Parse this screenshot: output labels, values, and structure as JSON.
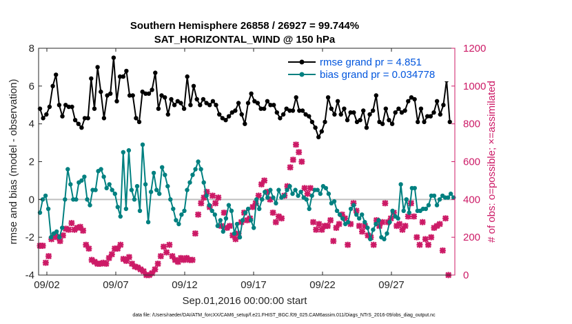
{
  "colors": {
    "rmse": "#000000",
    "bias": "#008080",
    "obs": "#cc1a66",
    "zero": "#bfbfbf",
    "legend_text": "#0055dd",
    "axis": "#262626"
  },
  "chart_data": {
    "type": "line",
    "title_line1": "Southern Hemisphere 26858 / 26927 = 99.744%",
    "title_line2": "SAT_HORIZONTAL_WIND @ 150 hPa",
    "xlabel": "Sep.01,2016 00:00:00 start",
    "ylabel_left": "rmse and bias (model - observation)",
    "ylabel_right": "# of obs: o=possible; ×=assimilated",
    "footer": "data file: /Users/raeder/DAI/ATM_forcXX/CAM6_setup/f.e21.FHIST_BGC.f09_025.CAM6assim.011/Diags_NTrS_2016-09/obs_diag_output.nc",
    "x_range_days": [
      0.4,
      30.6
    ],
    "ylim_left": [
      -4,
      8
    ],
    "ylim_right": [
      0,
      1200
    ],
    "x_ticks": [
      {
        "day": 1,
        "label": "09/02"
      },
      {
        "day": 6,
        "label": "09/07"
      },
      {
        "day": 11,
        "label": "09/12"
      },
      {
        "day": 16,
        "label": "09/17"
      },
      {
        "day": 21,
        "label": "09/22"
      },
      {
        "day": 26,
        "label": "09/27"
      }
    ],
    "y_ticks_left": [
      -4,
      -2,
      0,
      2,
      4,
      6,
      8
    ],
    "y_ticks_right": [
      0,
      200,
      400,
      600,
      800,
      1000,
      1200
    ],
    "legend": {
      "position": "top-right",
      "entries": [
        "rmse grand pr = 4.851",
        "bias grand pr = 0.034778"
      ]
    },
    "series": [
      {
        "name": "rmse grand pr = 4.851",
        "axis": "left",
        "marker": "circle",
        "values": [
          4.8,
          4.3,
          4.5,
          4.9,
          6.0,
          6.6,
          5.0,
          4.4,
          5.0,
          4.9,
          4.9,
          4.2,
          4.0,
          3.8,
          4.3,
          4.3,
          6.4,
          4.8,
          7.0,
          5.7,
          4.3,
          5.5,
          5.6,
          7.5,
          5.2,
          6.5,
          6.5,
          6.8,
          5.5,
          5.5,
          4.3,
          4.1,
          5.7,
          5.6,
          5.6,
          5.8,
          6.7,
          4.8,
          5.5,
          5.4,
          4.5,
          5.3,
          5.0,
          5.2,
          5.1,
          4.8,
          6.5,
          5.0,
          6.0,
          5.3,
          5.0,
          5.3,
          5.1,
          5.0,
          5.2,
          5.0,
          4.5,
          4.3,
          4.2,
          4.4,
          4.6,
          4.7,
          5.1,
          4.5,
          4.0,
          5.1,
          5.6,
          5.2,
          5.1,
          4.8,
          4.8,
          5.2,
          5.0,
          5.0,
          4.6,
          4.3,
          4.5,
          4.8,
          4.7,
          4.7,
          5.4,
          4.7,
          4.7,
          4.5,
          4.4,
          4.1,
          3.8,
          3.3,
          3.6,
          4.1,
          5.4,
          4.8,
          4.5,
          5.2,
          4.5,
          4.8,
          4.2,
          4.6,
          4.6,
          4.1,
          4.2,
          4.7,
          3.8,
          4.5,
          4.7,
          5.5,
          4.1,
          4.0,
          4.8,
          4.2,
          4.0,
          4.6,
          4.8,
          4.6,
          4.7,
          5.2,
          5.4,
          5.3,
          4.1,
          4.8,
          4.1,
          4.4,
          4.4,
          4.6,
          5.2,
          4.5,
          5.0,
          6.3,
          4.1
        ],
        "x_start_day": 0.5,
        "x_step_day": 0.2323
      },
      {
        "name": "bias grand pr = 0.034778",
        "axis": "left",
        "marker": "circle",
        "values": [
          -0.7,
          0.0,
          0.2,
          -0.5,
          -2.0,
          -1.8,
          -1.7,
          -2.0,
          -1.5,
          0.0,
          1.6,
          0.8,
          0.0,
          0.0,
          0.9,
          1.0,
          1.2,
          0.0,
          -0.3,
          0.5,
          0.5,
          1.5,
          1.6,
          1.2,
          0.6,
          0.8,
          0.5,
          0.3,
          -0.4,
          -0.9,
          2.5,
          -0.5,
          2.6,
          0.5,
          0.0,
          0.7,
          -0.6,
          2.9,
          0.8,
          -1.2,
          0.4,
          1.4,
          0.5,
          0.3,
          1.7,
          1.3,
          0.7,
          0.0,
          -0.5,
          -1.1,
          -1.3,
          -0.8,
          -0.6,
          0.5,
          0.9,
          1.3,
          1.6,
          2.0,
          1.6,
          0.9,
          0.2,
          -0.3,
          -0.6,
          -0.8,
          -1.4,
          -1.1,
          -1.7,
          -1.0,
          -0.3,
          -0.6,
          -1.8,
          -1.3,
          -2.0,
          -1.1,
          -0.7,
          -0.5,
          -1.1,
          -1.5,
          0.0,
          -0.5,
          0.0,
          0.4,
          0.1,
          0.5,
          0.1,
          -0.2,
          0.5,
          0.1,
          0.2,
          0.5,
          0.7,
          0.3,
          0.5,
          0.2,
          0.4,
          0.1,
          0.0,
          -0.5,
          0.2,
          0.5,
          0.5,
          0.3,
          0.7,
          0.6,
          0.3,
          -0.2,
          -0.1,
          -0.6,
          -0.8,
          -1.0,
          -1.3,
          -1.2,
          -0.5,
          -0.3,
          -0.8,
          -1.0,
          -0.8,
          -1.2,
          -1.5,
          -2.1,
          -1.6,
          -1.3,
          -1.1,
          -2.0,
          -2.1,
          -1.8,
          -1.2,
          -0.6,
          -0.9,
          -1.0,
          0.8,
          -0.6,
          0.0,
          -0.7,
          0.6,
          0.6,
          -0.6,
          -0.6,
          -0.5,
          -0.5,
          -0.3,
          0.2,
          0.2,
          -0.3,
          0.0,
          0.2,
          0.1,
          0.1,
          0.3,
          0.1
        ],
        "x_start_day": 0.5,
        "x_step_day": 0.2014
      },
      {
        "name": "assimilated observations",
        "axis": "right",
        "marker": "x",
        "values": [
          155,
          155,
          65,
          100,
          190,
          210,
          200,
          180,
          210,
          245,
          240,
          275,
          240,
          250,
          255,
          235,
          160,
          140,
          80,
          70,
          60,
          60,
          65,
          60,
          90,
          110,
          140,
          140,
          160,
          85,
          75,
          95,
          60,
          45,
          40,
          30,
          20,
          0,
          0,
          10,
          30,
          60,
          100,
          150,
          120,
          160,
          100,
          80,
          70,
          90,
          80,
          90,
          80,
          80,
          220,
          320,
          380,
          410,
          440,
          360,
          420,
          380,
          410,
          260,
          330,
          250,
          260,
          210,
          190,
          220,
          280,
          330,
          290,
          300,
          360,
          380,
          420,
          480,
          500,
          440,
          400,
          330,
          280,
          310,
          300,
          420,
          470,
          570,
          610,
          690,
          650,
          600,
          460,
          430,
          460,
          280,
          240,
          270,
          240,
          260,
          260,
          290,
          180,
          250,
          270,
          320,
          300,
          160,
          270,
          380,
          340,
          260,
          230,
          260,
          210,
          200,
          160,
          290,
          260,
          280,
          380,
          280,
          300,
          330,
          260,
          270,
          240,
          260,
          310,
          380,
          310,
          200,
          160,
          280,
          190,
          160,
          200,
          250,
          260,
          270,
          130,
          300,
          0
        ],
        "x_start_day": 0.5,
        "x_step_day": 0.2087
      }
    ]
  }
}
